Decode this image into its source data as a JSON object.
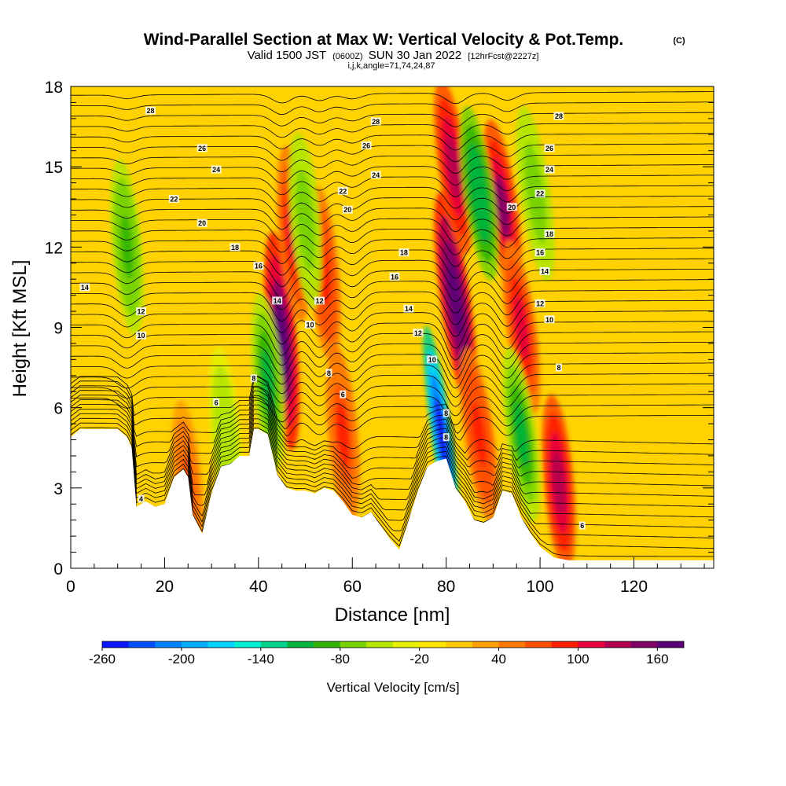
{
  "chart_data": {
    "type": "heatmap",
    "title": {
      "main": "Wind-Parallel Section at Max W: Vertical Velocity & Pot.Temp.",
      "main_unit": "(C)",
      "line2_a": "Valid 1500 JST",
      "line2_b": "(0600Z)",
      "line2_c": "SUN 30 Jan 2022",
      "line2_d": "[12hrFcst@2227z]",
      "line3": "i,j,k,angle=71,74,24,87"
    },
    "xlabel": "Distance [nm]",
    "ylabel": "Height [Kft MSL]",
    "xlim": [
      0,
      137
    ],
    "ylim": [
      0,
      18
    ],
    "x_ticks": [
      0,
      20,
      40,
      60,
      80,
      100,
      120
    ],
    "y_ticks": [
      0,
      3,
      6,
      9,
      12,
      15,
      18
    ],
    "colorbar": {
      "label": "Vertical Velocity [cm/s]",
      "ticks": [
        "-260",
        "-200",
        "-140",
        "-80",
        "-20",
        "40",
        "100",
        "160"
      ],
      "min": -260,
      "max": 180,
      "colors": [
        "#0a14ff",
        "#0050ff",
        "#0082ff",
        "#00aaff",
        "#00d2ff",
        "#00f0d2",
        "#00d28c",
        "#00b43c",
        "#32b400",
        "#78d200",
        "#b4e600",
        "#e6f000",
        "#ffe600",
        "#ffc800",
        "#ffa000",
        "#ff7800",
        "#ff5000",
        "#ff1e00",
        "#e6003c",
        "#b40050",
        "#800068",
        "#5a0078"
      ]
    },
    "contour_field": "Potential Temperature (C)",
    "contour_levels_labeled": [
      4,
      6,
      8,
      10,
      12,
      14,
      16,
      18,
      20,
      22,
      24,
      26,
      28
    ],
    "contour_labels": [
      {
        "x": 15,
        "z": 2.6,
        "v": "4"
      },
      {
        "x": 31,
        "z": 6.2,
        "v": "6"
      },
      {
        "x": 39,
        "z": 7.1,
        "v": "8"
      },
      {
        "x": 55,
        "z": 7.3,
        "v": "8"
      },
      {
        "x": 58,
        "z": 6.5,
        "v": "6"
      },
      {
        "x": 80,
        "z": 5.8,
        "v": "8"
      },
      {
        "x": 80,
        "z": 4.9,
        "v": "8"
      },
      {
        "x": 104,
        "z": 7.5,
        "v": "8"
      },
      {
        "x": 109,
        "z": 1.6,
        "v": "6"
      },
      {
        "x": 15,
        "z": 8.7,
        "v": "10"
      },
      {
        "x": 51,
        "z": 9.1,
        "v": "10"
      },
      {
        "x": 77,
        "z": 7.8,
        "v": "10"
      },
      {
        "x": 102,
        "z": 9.3,
        "v": "10"
      },
      {
        "x": 15,
        "z": 9.6,
        "v": "12"
      },
      {
        "x": 53,
        "z": 10.0,
        "v": "12"
      },
      {
        "x": 74,
        "z": 8.8,
        "v": "12"
      },
      {
        "x": 100,
        "z": 9.9,
        "v": "12"
      },
      {
        "x": 3,
        "z": 10.5,
        "v": "14"
      },
      {
        "x": 44,
        "z": 10.0,
        "v": "14"
      },
      {
        "x": 72,
        "z": 9.7,
        "v": "14"
      },
      {
        "x": 101,
        "z": 11.1,
        "v": "14"
      },
      {
        "x": 40,
        "z": 11.3,
        "v": "16"
      },
      {
        "x": 69,
        "z": 10.9,
        "v": "16"
      },
      {
        "x": 100,
        "z": 11.8,
        "v": "16"
      },
      {
        "x": 35,
        "z": 12.0,
        "v": "18"
      },
      {
        "x": 71,
        "z": 11.8,
        "v": "18"
      },
      {
        "x": 102,
        "z": 12.5,
        "v": "18"
      },
      {
        "x": 28,
        "z": 12.9,
        "v": "20"
      },
      {
        "x": 59,
        "z": 13.4,
        "v": "20"
      },
      {
        "x": 94,
        "z": 13.5,
        "v": "20"
      },
      {
        "x": 22,
        "z": 13.8,
        "v": "22"
      },
      {
        "x": 58,
        "z": 14.1,
        "v": "22"
      },
      {
        "x": 100,
        "z": 14.0,
        "v": "22"
      },
      {
        "x": 31,
        "z": 14.9,
        "v": "24"
      },
      {
        "x": 65,
        "z": 14.7,
        "v": "24"
      },
      {
        "x": 102,
        "z": 14.9,
        "v": "24"
      },
      {
        "x": 28,
        "z": 15.7,
        "v": "26"
      },
      {
        "x": 63,
        "z": 15.8,
        "v": "26"
      },
      {
        "x": 102,
        "z": 15.7,
        "v": "26"
      },
      {
        "x": 17,
        "z": 17.1,
        "v": "28"
      },
      {
        "x": 65,
        "z": 16.7,
        "v": "28"
      },
      {
        "x": 104,
        "z": 16.9,
        "v": "28"
      }
    ],
    "terrain_top_kft": {
      "x": [
        0,
        2,
        4,
        10,
        12,
        13,
        14,
        16,
        18,
        20,
        22,
        24,
        25,
        26,
        28,
        30,
        32,
        34,
        36,
        38,
        39,
        40,
        42,
        44,
        46,
        48,
        50,
        52,
        54,
        56,
        58,
        60,
        62,
        64,
        66,
        68,
        70,
        72,
        74,
        76,
        78,
        80,
        82,
        84,
        86,
        88,
        90,
        92,
        94,
        96,
        98,
        100,
        103,
        106,
        110,
        137
      ],
      "z": [
        4.9,
        5.2,
        5.2,
        5.2,
        4.9,
        4.5,
        2.3,
        2.5,
        2.3,
        2.4,
        3.4,
        3.7,
        3.4,
        2.0,
        1.3,
        2.8,
        3.8,
        3.9,
        4.2,
        4.2,
        5.2,
        5.2,
        5.0,
        3.5,
        3.0,
        2.9,
        2.9,
        2.8,
        3.0,
        2.9,
        2.5,
        2.0,
        1.9,
        2.1,
        1.6,
        1.1,
        0.7,
        1.8,
        2.9,
        3.8,
        4.0,
        4.1,
        3.0,
        2.5,
        1.8,
        1.7,
        1.9,
        2.9,
        2.8,
        1.9,
        1.3,
        0.8,
        0.4,
        0.3,
        0.3,
        0.3
      ]
    },
    "updrafts": [
      {
        "x": 45,
        "z": 8.5,
        "w": 170
      },
      {
        "x": 47.5,
        "z": 12.5,
        "w": 110
      },
      {
        "x": 54,
        "z": 11,
        "w": 90
      },
      {
        "x": 58,
        "z": 5,
        "w": 80
      },
      {
        "x": 82,
        "z": 10,
        "w": 180
      },
      {
        "x": 81.5,
        "z": 15,
        "w": 120
      },
      {
        "x": 92,
        "z": 13.5,
        "w": 140
      },
      {
        "x": 96,
        "z": 9,
        "w": 110
      },
      {
        "x": 104,
        "z": 3.2,
        "w": 120
      },
      {
        "x": 87,
        "z": 5,
        "w": 90
      },
      {
        "x": 25,
        "z": 3,
        "w": 70
      }
    ],
    "downdrafts": [
      {
        "x": 79,
        "z": 5,
        "w": -260
      },
      {
        "x": 87,
        "z": 14,
        "w": -120
      },
      {
        "x": 42,
        "z": 7,
        "w": -110
      },
      {
        "x": 96,
        "z": 5,
        "w": -110
      },
      {
        "x": 12,
        "z": 12,
        "w": -90
      },
      {
        "x": 50,
        "z": 13,
        "w": -80
      },
      {
        "x": 99,
        "z": 14,
        "w": -80
      },
      {
        "x": 33,
        "z": 5,
        "w": -60
      }
    ]
  }
}
